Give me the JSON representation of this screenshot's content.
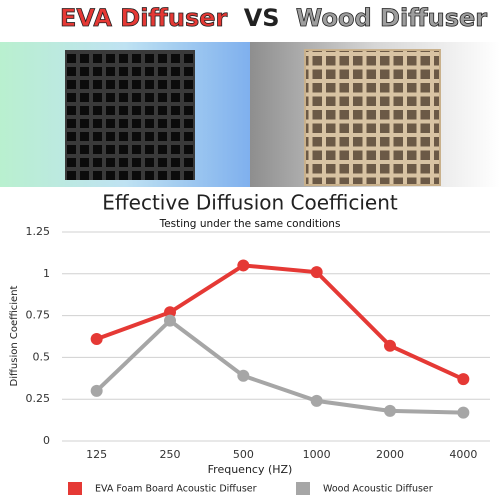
{
  "header": {
    "left": "EVA Diffuser",
    "vs": "VS",
    "right": "Wood Diffuser"
  },
  "chart_data": {
    "type": "line",
    "title": "Effective Diffusion Coefficient",
    "subtitle": "Testing under the same conditions",
    "x_label": "Frequency (HZ)",
    "y_label": "Diffusion Coefficient",
    "categories": [
      "125",
      "250",
      "500",
      "1000",
      "2000",
      "4000"
    ],
    "series": [
      {
        "name": "EVA Foam Board Acoustic Diffuser",
        "color": "#e53935",
        "values": [
          0.61,
          0.77,
          1.05,
          1.01,
          0.57,
          0.37
        ]
      },
      {
        "name": "Wood Acoustic Diffuser",
        "color": "#a6a6a6",
        "values": [
          0.3,
          0.72,
          0.39,
          0.24,
          0.18,
          0.17
        ]
      }
    ],
    "ylim": [
      0,
      1.25
    ],
    "yticks": [
      0,
      0.25,
      0.5,
      0.75,
      1,
      1.25
    ],
    "grid": true,
    "legend": "bottom"
  }
}
